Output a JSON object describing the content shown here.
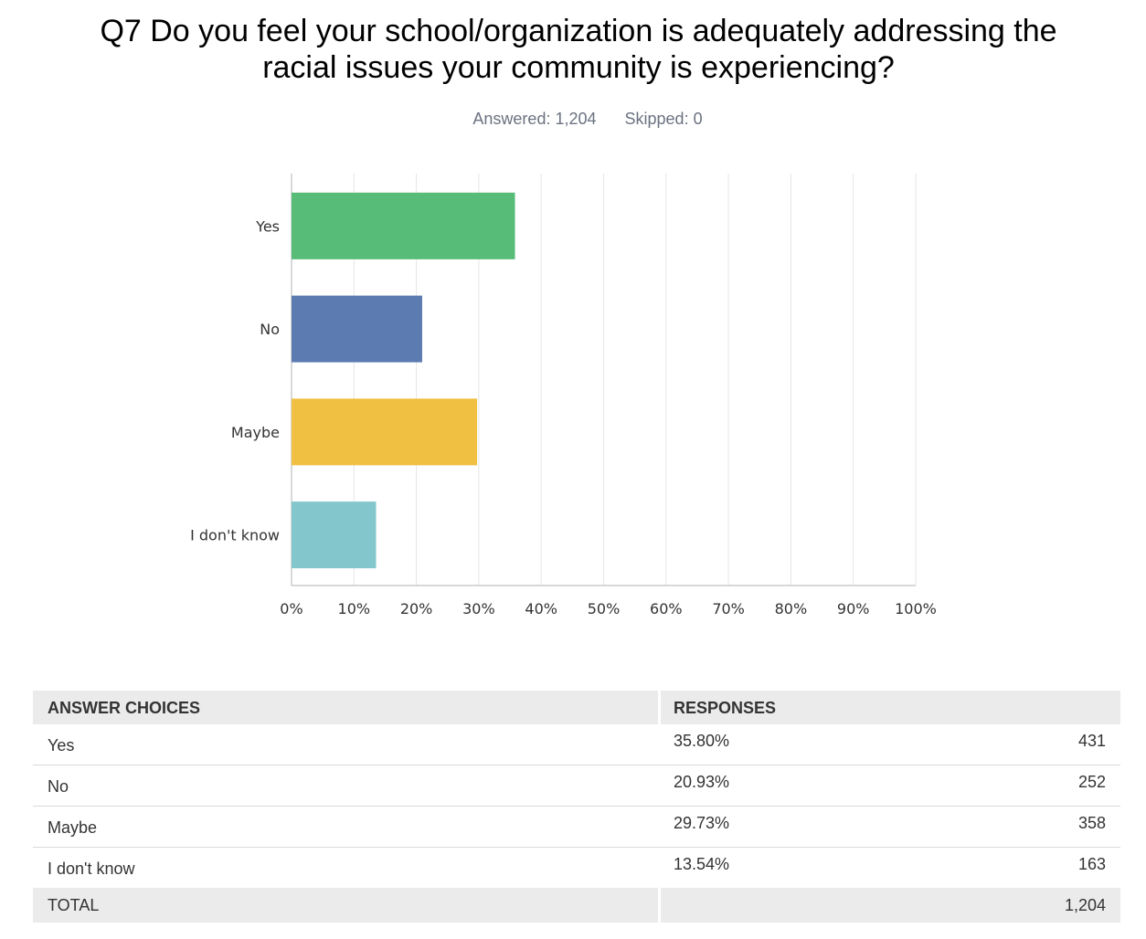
{
  "title_lines": [
    "Q7 Do you feel your school/organization is adequately addressing the",
    "racial issues your community is experiencing?"
  ],
  "stats": {
    "answered": "Answered: 1,204",
    "skipped": "Skipped: 0"
  },
  "chart_data": {
    "type": "bar",
    "orientation": "horizontal",
    "categories": [
      "Yes",
      "No",
      "Maybe",
      "I don't know"
    ],
    "values": [
      35.8,
      20.93,
      29.73,
      13.54
    ],
    "colors": [
      "#57bc77",
      "#5b7bb1",
      "#efc041",
      "#83c6cb"
    ],
    "xlim": [
      0,
      100
    ],
    "x_ticks": [
      "0%",
      "10%",
      "20%",
      "30%",
      "40%",
      "50%",
      "60%",
      "70%",
      "80%",
      "90%",
      "100%"
    ],
    "grid": true
  },
  "table": {
    "headers": {
      "choices": "ANSWER CHOICES",
      "responses": "RESPONSES"
    },
    "rows": [
      {
        "choice": "Yes",
        "percent": "35.80%",
        "count": "431"
      },
      {
        "choice": "No",
        "percent": "20.93%",
        "count": "252"
      },
      {
        "choice": "Maybe",
        "percent": "29.73%",
        "count": "358"
      },
      {
        "choice": "I don't know",
        "percent": "13.54%",
        "count": "163"
      }
    ],
    "total": {
      "label": "TOTAL",
      "count": "1,204"
    }
  }
}
